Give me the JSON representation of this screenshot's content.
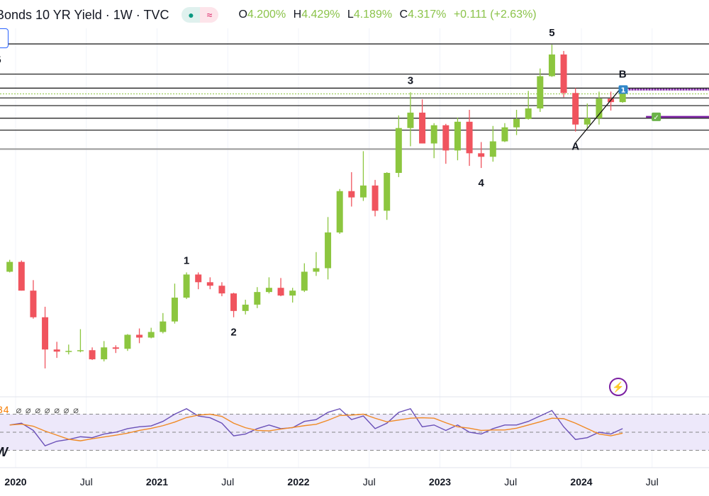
{
  "header": {
    "title": "Bonds 10 YR Yield · 1W · TVC",
    "status_dot": "●",
    "status_wave": "≈",
    "ohlc": {
      "o_label": "O",
      "o": "4.200%",
      "h_label": "H",
      "h": "4.429%",
      "l_label": "L",
      "l": "4.189%",
      "c_label": "C",
      "c": "4.317%",
      "change": "+0.111 (+2.63%)"
    }
  },
  "left_partial": {
    "five": "5",
    "w": "W",
    "rsi_value": "34",
    "rsi_nulls": "⌀ ⌀ ⌀ ⌀ ⌀ ⌀ ⌀"
  },
  "icons": {
    "bolt": "lightning-icon",
    "marker_one": "1",
    "marker_check": "✓"
  },
  "colors": {
    "up": "#8cc63f",
    "down": "#f0545e",
    "rsi": "#6a50b8",
    "rsi_ma": "#f08a24",
    "rsi_band": "#ede8fa",
    "annotation": "#7b1fa2",
    "marker_blue": "#2f86c8",
    "marker_green": "#6bb34a"
  },
  "chart_data": {
    "type": "candlestick",
    "symbol": "10 YR Yield",
    "interval": "1W",
    "x_axis_labels": [
      {
        "date": "2020-01",
        "label": "2020",
        "year": true
      },
      {
        "date": "2020-07",
        "label": "Jul",
        "year": false
      },
      {
        "date": "2021-01",
        "label": "2021",
        "year": true
      },
      {
        "date": "2021-07",
        "label": "Jul",
        "year": false
      },
      {
        "date": "2022-01",
        "label": "2022",
        "year": true
      },
      {
        "date": "2022-07",
        "label": "Jul",
        "year": false
      },
      {
        "date": "2023-01",
        "label": "2023",
        "year": true
      },
      {
        "date": "2023-07",
        "label": "Jul",
        "year": false
      },
      {
        "date": "2024-01",
        "label": "2024",
        "year": true
      },
      {
        "date": "2024-07",
        "label": "Jul",
        "year": false
      }
    ],
    "candles_monthly_approx": [
      [
        "2019-12",
        1.78,
        1.95,
        1.77,
        1.92
      ],
      [
        "2020-01",
        1.92,
        1.94,
        1.51,
        1.51
      ],
      [
        "2020-02",
        1.51,
        1.66,
        1.11,
        1.13
      ],
      [
        "2020-03",
        1.13,
        1.28,
        0.4,
        0.67
      ],
      [
        "2020-04",
        0.67,
        0.78,
        0.55,
        0.64
      ],
      [
        "2020-05",
        0.64,
        0.74,
        0.6,
        0.65
      ],
      [
        "2020-06",
        0.65,
        0.96,
        0.63,
        0.66
      ],
      [
        "2020-07",
        0.66,
        0.7,
        0.52,
        0.53
      ],
      [
        "2020-08",
        0.53,
        0.79,
        0.5,
        0.7
      ],
      [
        "2020-09",
        0.7,
        0.73,
        0.62,
        0.68
      ],
      [
        "2020-10",
        0.68,
        0.89,
        0.65,
        0.88
      ],
      [
        "2020-11",
        0.88,
        0.97,
        0.76,
        0.84
      ],
      [
        "2020-12",
        0.84,
        0.98,
        0.83,
        0.92
      ],
      [
        "2021-01",
        0.92,
        1.19,
        0.9,
        1.07
      ],
      [
        "2021-02",
        1.07,
        1.61,
        1.04,
        1.41
      ],
      [
        "2021-03",
        1.41,
        1.77,
        1.39,
        1.74
      ],
      [
        "2021-04",
        1.74,
        1.77,
        1.53,
        1.63
      ],
      [
        "2021-05",
        1.63,
        1.7,
        1.53,
        1.58
      ],
      [
        "2021-06",
        1.58,
        1.63,
        1.43,
        1.47
      ],
      [
        "2021-07",
        1.47,
        1.48,
        1.13,
        1.22
      ],
      [
        "2021-08",
        1.22,
        1.38,
        1.17,
        1.31
      ],
      [
        "2021-09",
        1.31,
        1.56,
        1.26,
        1.49
      ],
      [
        "2021-10",
        1.49,
        1.7,
        1.47,
        1.55
      ],
      [
        "2021-11",
        1.55,
        1.69,
        1.43,
        1.44
      ],
      [
        "2021-12",
        1.44,
        1.55,
        1.34,
        1.51
      ],
      [
        "2022-01",
        1.51,
        1.9,
        1.49,
        1.78
      ],
      [
        "2022-02",
        1.78,
        2.06,
        1.72,
        1.83
      ],
      [
        "2022-03",
        1.83,
        2.56,
        1.67,
        2.34
      ],
      [
        "2022-04",
        2.34,
        2.96,
        2.32,
        2.93
      ],
      [
        "2022-05",
        2.93,
        3.2,
        2.71,
        2.84
      ],
      [
        "2022-06",
        2.84,
        3.5,
        2.79,
        3.01
      ],
      [
        "2022-07",
        3.01,
        3.09,
        2.57,
        2.65
      ],
      [
        "2022-08",
        2.65,
        3.2,
        2.52,
        3.19
      ],
      [
        "2022-09",
        3.19,
        4.01,
        3.13,
        3.83
      ],
      [
        "2022-10",
        3.83,
        4.34,
        3.57,
        4.05
      ],
      [
        "2022-11",
        4.05,
        4.24,
        3.61,
        3.61
      ],
      [
        "2022-12",
        3.61,
        3.9,
        3.4,
        3.87
      ],
      [
        "2023-01",
        3.87,
        3.89,
        3.32,
        3.51
      ],
      [
        "2023-02",
        3.51,
        3.98,
        3.37,
        3.92
      ],
      [
        "2023-03",
        3.92,
        4.09,
        3.29,
        3.47
      ],
      [
        "2023-04",
        3.47,
        3.63,
        3.26,
        3.42
      ],
      [
        "2023-05",
        3.42,
        3.86,
        3.35,
        3.64
      ],
      [
        "2023-06",
        3.64,
        3.9,
        3.63,
        3.84
      ],
      [
        "2023-07",
        3.84,
        4.09,
        3.73,
        3.96
      ],
      [
        "2023-08",
        3.96,
        4.36,
        3.95,
        4.11
      ],
      [
        "2023-09",
        4.11,
        4.68,
        4.06,
        4.57
      ],
      [
        "2023-10",
        4.57,
        5.02,
        4.56,
        4.88
      ],
      [
        "2023-11",
        4.88,
        4.93,
        4.27,
        4.33
      ],
      [
        "2023-12",
        4.33,
        4.4,
        3.78,
        3.88
      ],
      [
        "2024-01",
        3.88,
        4.18,
        3.82,
        3.97
      ],
      [
        "2024-02",
        3.97,
        4.35,
        3.88,
        4.25
      ],
      [
        "2024-03",
        4.25,
        4.35,
        4.08,
        4.2
      ],
      [
        "2024-04",
        4.2,
        4.43,
        4.19,
        4.32
      ]
    ],
    "y_range": [
      0.4,
      5.4
    ],
    "horizontal_levels": [
      5.03,
      4.6,
      4.4,
      4.26,
      4.15,
      3.97,
      3.8
    ],
    "grey_level": 3.53,
    "last_price": 4.317,
    "wave_labels": [
      {
        "label": "1",
        "date": "2021-03",
        "value": 1.77,
        "pos": "above"
      },
      {
        "label": "2",
        "date": "2021-07",
        "value": 1.13,
        "pos": "below"
      },
      {
        "label": "3",
        "date": "2022-10",
        "value": 4.34,
        "pos": "above"
      },
      {
        "label": "4",
        "date": "2023-04",
        "value": 3.26,
        "pos": "below"
      },
      {
        "label": "5",
        "date": "2023-10",
        "value": 5.02,
        "pos": "above"
      },
      {
        "label": "A",
        "date": "2023-12",
        "value": 3.78,
        "pos": "below"
      },
      {
        "label": "B",
        "date": "2024-04",
        "value": 4.43,
        "pos": "above"
      }
    ],
    "trendline": [
      [
        "2023-12",
        3.62
      ],
      [
        "2024-04",
        4.43
      ]
    ],
    "target_lines": [
      {
        "from": "2024-05",
        "value": 4.38,
        "marker": "1"
      },
      {
        "from": "2024-06",
        "value": 3.99,
        "marker": "✓"
      }
    ],
    "rsi": {
      "levels": [
        70,
        50,
        30
      ],
      "values": [
        58,
        60,
        52,
        35,
        40,
        42,
        45,
        44,
        48,
        50,
        54,
        56,
        57,
        62,
        70,
        76,
        68,
        66,
        60,
        46,
        48,
        54,
        58,
        54,
        55,
        62,
        64,
        72,
        76,
        64,
        68,
        54,
        60,
        72,
        76,
        56,
        58,
        52,
        58,
        50,
        48,
        54,
        58,
        58,
        62,
        68,
        74,
        56,
        42,
        44,
        50,
        48,
        54
      ]
    }
  }
}
